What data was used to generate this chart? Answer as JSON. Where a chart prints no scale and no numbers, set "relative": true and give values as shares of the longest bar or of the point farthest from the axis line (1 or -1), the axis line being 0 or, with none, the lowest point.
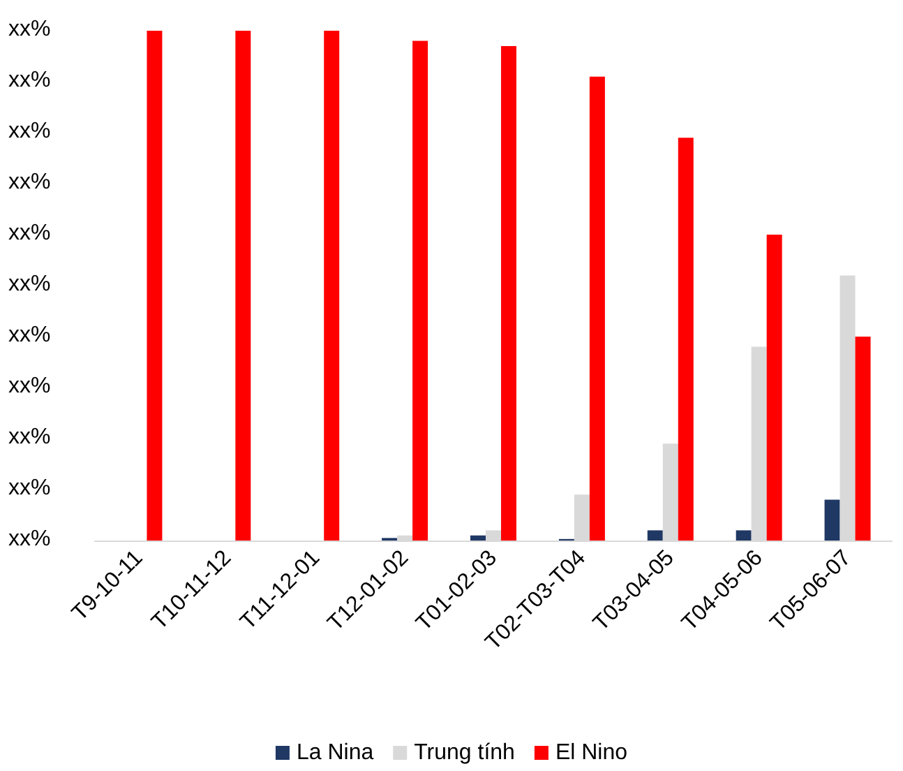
{
  "chart_data": {
    "type": "bar",
    "categories": [
      "T9-10-11",
      "T10-11-12",
      "T11-12-01",
      "T12-01-02",
      "T01-02-03",
      "T02-T03-T04",
      "T03-04-05",
      "T04-05-06",
      "T05-06-07"
    ],
    "series": [
      {
        "name": "La Nina",
        "color": "#1f3864",
        "values": [
          0,
          0,
          0,
          0.005,
          0.01,
          0.003,
          0.02,
          0.02,
          0.08
        ]
      },
      {
        "name": "Trung tính",
        "color": "#d9d9d9",
        "values": [
          0,
          0,
          0,
          0.01,
          0.02,
          0.09,
          0.19,
          0.38,
          0.52
        ]
      },
      {
        "name": "El Nino",
        "color": "#ff0000",
        "values": [
          1.0,
          1.0,
          1.0,
          0.98,
          0.97,
          0.91,
          0.79,
          0.6,
          0.4
        ]
      }
    ],
    "relative": true,
    "annotations": [
      "xx%",
      "xx%",
      "xx%",
      "xx%",
      "xx%",
      "xx%",
      "xx%",
      "xx%",
      "xx%",
      "xx%",
      "xx%"
    ],
    "grid": false,
    "legend": "bottom"
  }
}
